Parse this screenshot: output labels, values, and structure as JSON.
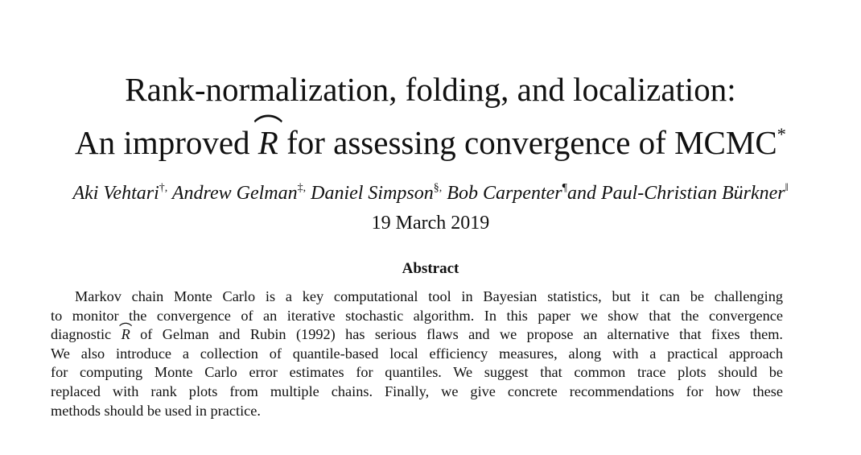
{
  "title": {
    "line1": "Rank-normalization, folding, and localization:",
    "line2_before": "An improved ",
    "line2_symbol": "R",
    "line2_after": " for assessing convergence of MCMC",
    "footnote_mark": "*"
  },
  "authors": [
    {
      "name": "Aki Vehtari",
      "mark": "†,"
    },
    {
      "name": "Andrew Gelman",
      "mark": "‡,"
    },
    {
      "name": "Daniel Simpson",
      "mark": "§,"
    },
    {
      "name": "Bob Carpenter",
      "mark": "¶"
    },
    {
      "name": "and Paul-Christian Bürkner",
      "mark": "‖"
    }
  ],
  "date": "19 March 2019",
  "abstract": {
    "heading": "Abstract",
    "lines": [
      "Markov chain Monte Carlo is a key computational tool in Bayesian statistics, but it can be challenging",
      "to monitor the convergence of an iterative stochastic algorithm. In this paper we show that the convergence",
      {
        "before": "diagnostic ",
        "symbol": "R",
        "after": " of Gelman and Rubin (1992) has serious flaws and we propose an alternative that fixes them."
      },
      "We also introduce a collection of quantile-based local efficiency measures, along with a practical approach",
      "for computing Monte Carlo error estimates for quantiles. We suggest that common trace plots should be",
      "replaced with rank plots from multiple chains. Finally, we give concrete recommendations for how these",
      "methods should be used in practice."
    ]
  }
}
